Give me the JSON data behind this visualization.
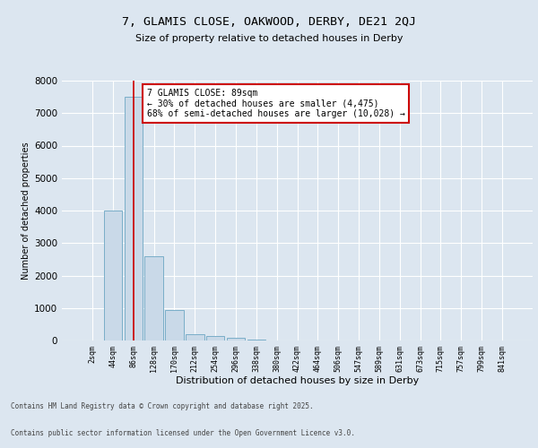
{
  "title1": "7, GLAMIS CLOSE, OAKWOOD, DERBY, DE21 2QJ",
  "title2": "Size of property relative to detached houses in Derby",
  "xlabel": "Distribution of detached houses by size in Derby",
  "ylabel": "Number of detached properties",
  "categories": [
    "2sqm",
    "44sqm",
    "86sqm",
    "128sqm",
    "170sqm",
    "212sqm",
    "254sqm",
    "296sqm",
    "338sqm",
    "380sqm",
    "422sqm",
    "464sqm",
    "506sqm",
    "547sqm",
    "589sqm",
    "631sqm",
    "673sqm",
    "715sqm",
    "757sqm",
    "799sqm",
    "841sqm"
  ],
  "values": [
    10,
    4000,
    7500,
    2600,
    950,
    200,
    150,
    80,
    20,
    0,
    0,
    0,
    0,
    0,
    0,
    0,
    0,
    0,
    0,
    0,
    0
  ],
  "bar_color": "#c9d9e8",
  "bar_edge_color": "#7aaec8",
  "red_line_index": 2,
  "annotation_title": "7 GLAMIS CLOSE: 89sqm",
  "annotation_line1": "← 30% of detached houses are smaller (4,475)",
  "annotation_line2": "68% of semi-detached houses are larger (10,028) →",
  "annotation_box_color": "#ffffff",
  "annotation_box_edge": "#cc0000",
  "red_line_color": "#cc0000",
  "ylim": [
    0,
    8000
  ],
  "yticks": [
    0,
    1000,
    2000,
    3000,
    4000,
    5000,
    6000,
    7000,
    8000
  ],
  "background_color": "#dce6f0",
  "plot_background": "#dce6f0",
  "grid_color": "#ffffff",
  "footer1": "Contains HM Land Registry data © Crown copyright and database right 2025.",
  "footer2": "Contains public sector information licensed under the Open Government Licence v3.0."
}
